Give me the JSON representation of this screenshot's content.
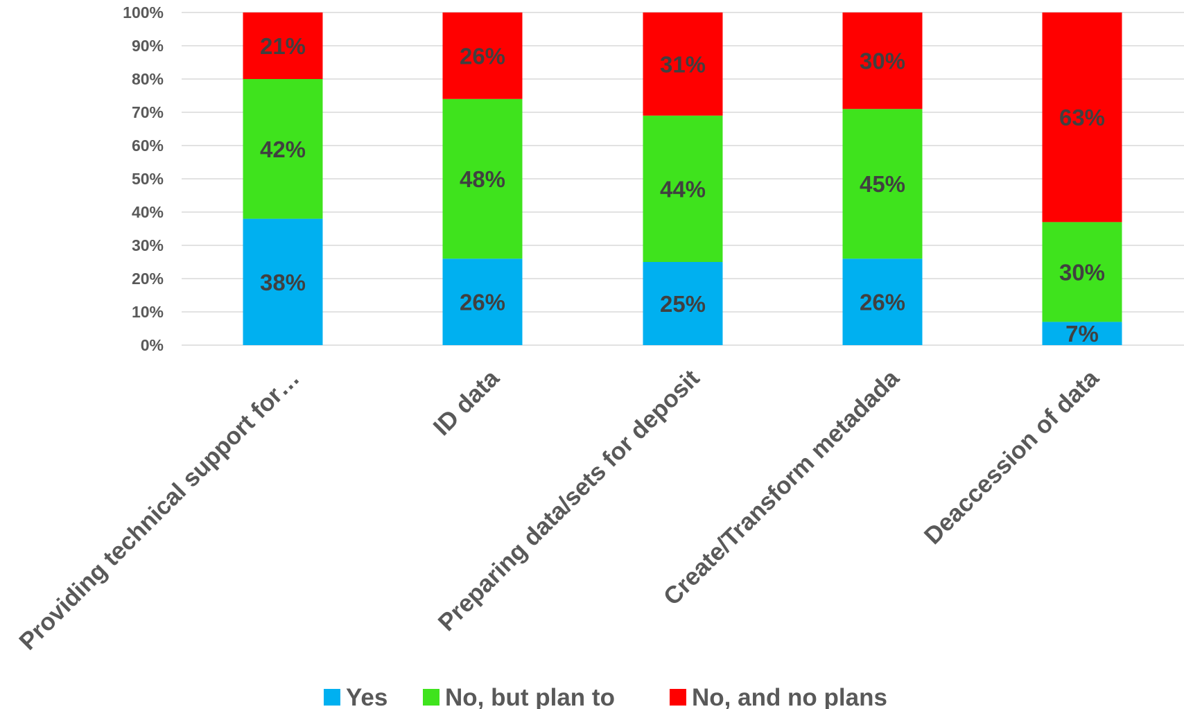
{
  "chart_data": {
    "type": "bar",
    "stacked": true,
    "percent_stacked": true,
    "categories": [
      "Providing technical support for…",
      "ID data",
      "Preparing data/sets for deposit",
      "Create/Transform metadada",
      "Deaccession of data"
    ],
    "series": [
      {
        "name": "Yes",
        "values": [
          38,
          26,
          25,
          26,
          7
        ],
        "color": "#00b0f0"
      },
      {
        "name": "No, but plan to",
        "values": [
          42,
          48,
          44,
          45,
          30
        ],
        "color": "#3fe31d"
      },
      {
        "name": "No, and no plans",
        "values": [
          21,
          26,
          31,
          30,
          63
        ],
        "color": "#ff0000"
      }
    ],
    "data_labels": [
      [
        "38%",
        "26%",
        "25%",
        "26%",
        "7%"
      ],
      [
        "42%",
        "48%",
        "44%",
        "45%",
        "30%"
      ],
      [
        "21%",
        "26%",
        "31%",
        "30%",
        "63%"
      ]
    ],
    "y_ticks": [
      "0%",
      "10%",
      "20%",
      "30%",
      "40%",
      "50%",
      "60%",
      "70%",
      "80%",
      "90%",
      "100%"
    ],
    "ylim": [
      0,
      100
    ],
    "grid": true,
    "legend_position": "bottom",
    "title": "",
    "xlabel": "",
    "ylabel": ""
  }
}
